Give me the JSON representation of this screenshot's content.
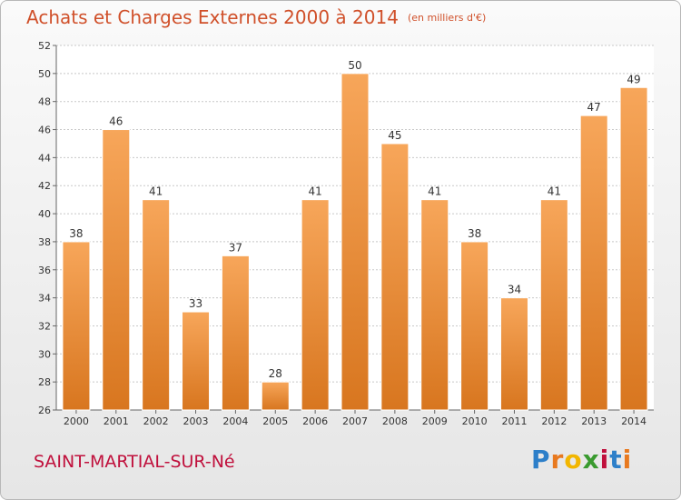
{
  "title": "Achats et Charges Externes 2000 à 2014",
  "unit": "(en milliers d'€)",
  "commune": "SAINT-MARTIAL-SUR-Né",
  "logo": {
    "letters": [
      "P",
      "r",
      "o",
      "x",
      "i",
      "t",
      "i"
    ],
    "colors": [
      "#2d7fc9",
      "#e8791f",
      "#f2b600",
      "#3a9b2f",
      "#c0103c",
      "#2d7fc9",
      "#e8791f"
    ]
  },
  "colors": {
    "bar_top": "#f7a65a",
    "bar_bottom": "#d8761f",
    "grid": "#c8c8c8"
  },
  "chart_data": {
    "type": "bar",
    "categories": [
      "2000",
      "2001",
      "2002",
      "2003",
      "2004",
      "2005",
      "2006",
      "2007",
      "2008",
      "2009",
      "2010",
      "2011",
      "2012",
      "2013",
      "2014"
    ],
    "values": [
      38,
      46,
      41,
      33,
      37,
      28,
      41,
      50,
      45,
      41,
      38,
      34,
      41,
      47,
      49
    ],
    "ylim": [
      26,
      52
    ],
    "yticks": [
      26,
      28,
      30,
      32,
      34,
      36,
      38,
      40,
      42,
      44,
      46,
      48,
      50,
      52
    ],
    "grid": true,
    "data_labels": true
  }
}
